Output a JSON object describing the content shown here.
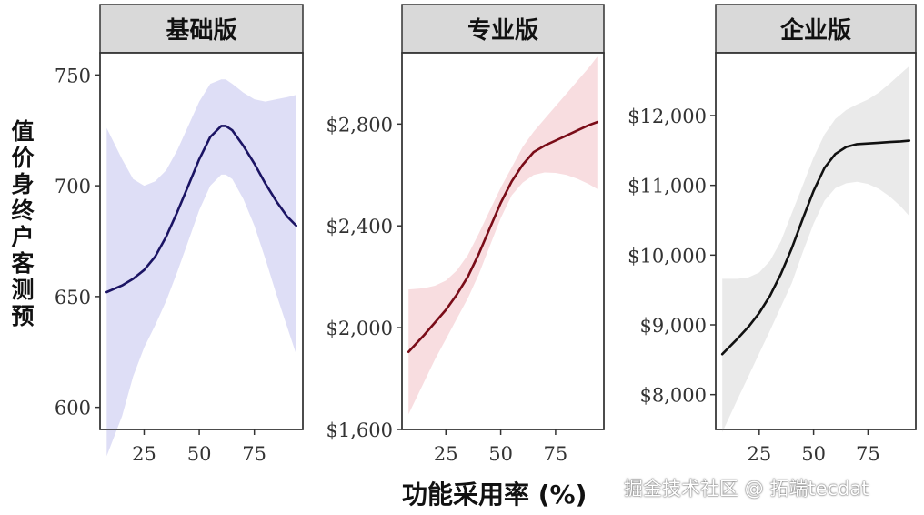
{
  "chart_data": [
    {
      "type": "line",
      "panel_title": "基础版",
      "x": [
        8,
        15,
        20,
        25,
        30,
        35,
        40,
        45,
        50,
        55,
        60,
        62,
        65,
        70,
        75,
        80,
        85,
        90,
        94
      ],
      "y": [
        652,
        655,
        658,
        662,
        668,
        677,
        688,
        700,
        712,
        722,
        727,
        727,
        725,
        718,
        710,
        701,
        693,
        686,
        682
      ],
      "ci_upper": [
        726,
        712,
        703,
        700,
        702,
        707,
        716,
        727,
        738,
        746,
        748,
        748,
        746,
        742,
        739,
        738,
        739,
        740,
        741
      ],
      "ci_lower": [
        578,
        596,
        614,
        627,
        637,
        648,
        661,
        675,
        689,
        700,
        705,
        705,
        703,
        694,
        682,
        667,
        651,
        636,
        624
      ],
      "ylim": [
        590,
        760
      ],
      "y_ticks": [
        600,
        650,
        700,
        750
      ],
      "y_tick_labels": [
        "600",
        "650",
        "700",
        "750"
      ],
      "x_ticks": [
        25,
        50,
        75
      ],
      "x_tick_labels": [
        "25",
        "50",
        "75"
      ],
      "line_color": "#1b1464",
      "ribbon_color": "#c8c8f0"
    },
    {
      "type": "line",
      "panel_title": "专业版",
      "x": [
        8,
        15,
        20,
        25,
        30,
        35,
        40,
        45,
        50,
        55,
        60,
        65,
        70,
        75,
        80,
        85,
        90,
        94
      ],
      "y": [
        1905,
        1970,
        2020,
        2070,
        2130,
        2200,
        2290,
        2390,
        2490,
        2575,
        2640,
        2690,
        2715,
        2735,
        2755,
        2775,
        2795,
        2808
      ],
      "ci_upper": [
        2150,
        2155,
        2165,
        2185,
        2225,
        2285,
        2370,
        2460,
        2550,
        2630,
        2710,
        2770,
        2820,
        2870,
        2920,
        2970,
        3020,
        3065
      ],
      "ci_lower": [
        1660,
        1785,
        1875,
        1955,
        2035,
        2115,
        2210,
        2320,
        2430,
        2520,
        2570,
        2600,
        2610,
        2608,
        2600,
        2585,
        2565,
        2545
      ],
      "ylim": [
        1600,
        3080
      ],
      "y_ticks": [
        1600,
        2000,
        2400,
        2800
      ],
      "y_tick_labels": [
        "$1,600",
        "$2,000",
        "$2,400",
        "$2,800"
      ],
      "x_ticks": [
        25,
        50,
        75
      ],
      "x_tick_labels": [
        "25",
        "50",
        "75"
      ],
      "line_color": "#7a0c18",
      "ribbon_color": "#f4c7cc"
    },
    {
      "type": "line",
      "panel_title": "企业版",
      "x": [
        8,
        15,
        20,
        25,
        30,
        35,
        40,
        45,
        50,
        55,
        60,
        65,
        70,
        75,
        80,
        85,
        90,
        94
      ],
      "y": [
        8580,
        8800,
        8970,
        9170,
        9420,
        9730,
        10100,
        10520,
        10920,
        11250,
        11450,
        11550,
        11590,
        11600,
        11610,
        11620,
        11630,
        11640
      ],
      "ci_upper": [
        9660,
        9660,
        9680,
        9750,
        9920,
        10200,
        10600,
        11000,
        11400,
        11730,
        11950,
        12080,
        12160,
        12230,
        12330,
        12460,
        12600,
        12710
      ],
      "ci_lower": [
        7460,
        7930,
        8260,
        8590,
        8920,
        9260,
        9600,
        10040,
        10450,
        10780,
        10960,
        11030,
        11050,
        11020,
        10950,
        10840,
        10700,
        10560
      ],
      "ylim": [
        7500,
        12900
      ],
      "y_ticks": [
        8000,
        9000,
        10000,
        11000,
        12000
      ],
      "y_tick_labels": [
        "$8,000",
        "$9,000",
        "$10,000",
        "$11,000",
        "$12,000"
      ],
      "x_ticks": [
        25,
        50,
        75
      ],
      "x_tick_labels": [
        "25",
        "50",
        "75"
      ],
      "line_color": "#111111",
      "ribbon_color": "#dcdcdc"
    }
  ],
  "shared": {
    "xlabel": "功能采用率 (%)",
    "ylabel": "值价身终户客测预",
    "xlim": [
      5,
      97
    ]
  },
  "watermark": "掘金技术社区 @ 拓端tecdat"
}
